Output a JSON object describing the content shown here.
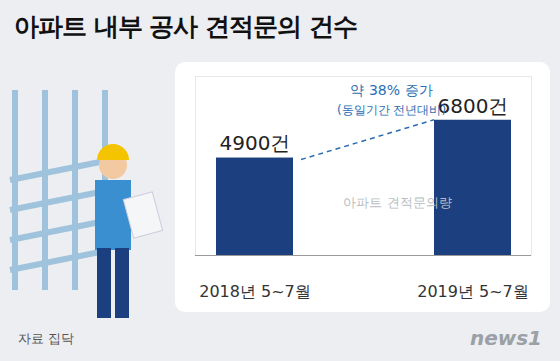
{
  "chart_data": {
    "type": "bar",
    "title": "아파트 내부 공사 견적문의 건수",
    "categories": [
      "2018년 5~7월",
      "2019년 5~7월"
    ],
    "values": [
      4900,
      6800
    ],
    "value_labels": [
      "4900건",
      "6800건"
    ],
    "data_labels": true,
    "color": "#1c3f7f",
    "ylim": [
      0,
      9000
    ],
    "tick_labels": "x",
    "annotations": [
      "약 38% 증가",
      "(동일기간 전년대비)"
    ],
    "series_label": "아파트 견적문의량",
    "source": "자료 집닥",
    "credit": "news1"
  }
}
